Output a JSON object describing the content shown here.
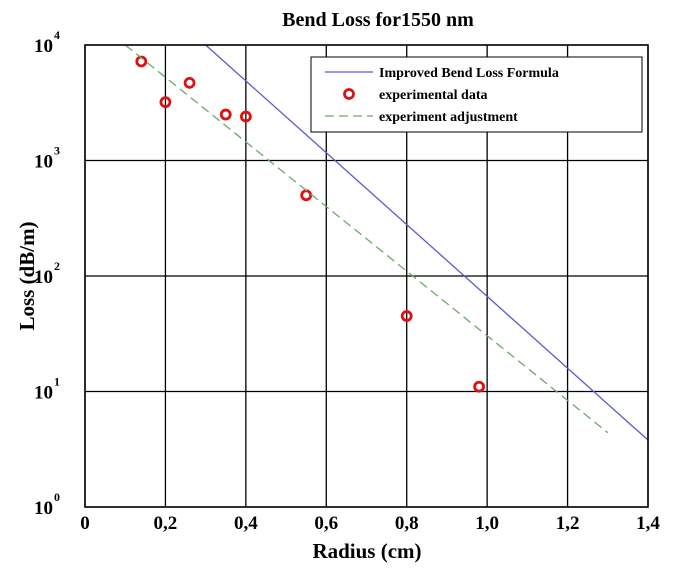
{
  "chart_data": {
    "type": "scatter",
    "title": "Bend Loss for1550 nm",
    "xlabel": "Radius (cm)",
    "ylabel": "Loss (dB/m)",
    "xlim": [
      0,
      1.4
    ],
    "ylim": [
      1,
      10000
    ],
    "yscale": "log",
    "grid": true,
    "legend_position": "top-right",
    "x_ticks": [
      {
        "value": 0,
        "label": "0"
      },
      {
        "value": 0.2,
        "label": "0,2"
      },
      {
        "value": 0.4,
        "label": "0,4"
      },
      {
        "value": 0.6,
        "label": "0,6"
      },
      {
        "value": 0.8,
        "label": "0,8"
      },
      {
        "value": 1.0,
        "label": "1,0"
      },
      {
        "value": 1.2,
        "label": "1,2"
      },
      {
        "value": 1.4,
        "label": "1,4"
      }
    ],
    "y_ticks": [
      {
        "value": 1,
        "base": "10",
        "exp": "0"
      },
      {
        "value": 10,
        "base": "10",
        "exp": "1"
      },
      {
        "value": 100,
        "base": "10",
        "exp": "2"
      },
      {
        "value": 1000,
        "base": "10",
        "exp": "3"
      },
      {
        "value": 10000,
        "base": "10",
        "exp": "4"
      }
    ],
    "series": [
      {
        "name": "Improved Bend Loss Formula",
        "kind": "line",
        "color": "#5a5acf",
        "dash": "solid",
        "x": [
          0.3,
          1.4
        ],
        "y": [
          10000,
          3.8
        ]
      },
      {
        "name": "experimental data",
        "kind": "scatter",
        "color": "#e01010",
        "marker": "circle-open",
        "x": [
          0.14,
          0.2,
          0.26,
          0.35,
          0.4,
          0.55,
          0.8,
          0.98
        ],
        "y": [
          7200,
          3200,
          4700,
          2500,
          2400,
          500,
          45,
          11
        ]
      },
      {
        "name": "experiment adjustment",
        "kind": "line",
        "color": "#6aaa6a",
        "dash": "dashed",
        "x": [
          0.1,
          1.3
        ],
        "y": [
          10000,
          4.4
        ]
      }
    ]
  }
}
